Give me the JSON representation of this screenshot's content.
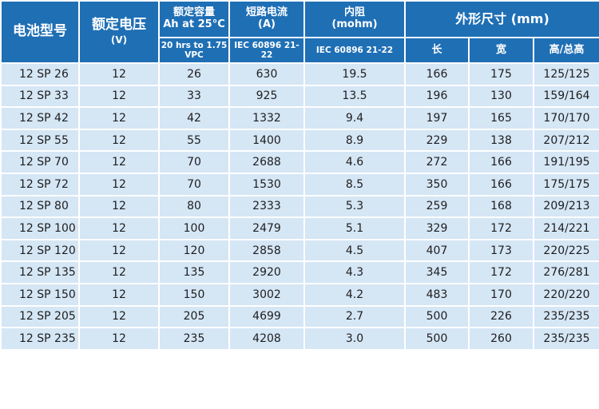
{
  "header": {
    "model": "电池型号",
    "voltage": "额定电压",
    "voltage_unit": "(V)",
    "capacity_line1": "额定容量",
    "capacity_line2": "Ah at 25°C",
    "capacity_sub": "20 hrs to 1.75 VPC",
    "short_line1": "短路电流",
    "short_line2": "(A)",
    "short_sub": "IEC 60896 21-22",
    "resist_line1": "内阻",
    "resist_line2": "(mohm)",
    "resist_sub": "IEC 60896 21-22",
    "dims": "外形尺寸 (mm)",
    "dim_length": "长",
    "dim_width": "宽",
    "dim_height": "高/总高"
  },
  "rows": [
    [
      "12 SP 26",
      "12",
      "26",
      "630",
      "19.5",
      "166",
      "175",
      "125/125"
    ],
    [
      "12 SP 33",
      "12",
      "33",
      "925",
      "13.5",
      "196",
      "130",
      "159/164"
    ],
    [
      "12 SP 42",
      "12",
      "42",
      "1332",
      "9.4",
      "197",
      "165",
      "170/170"
    ],
    [
      "12 SP 55",
      "12",
      "55",
      "1400",
      "8.9",
      "229",
      "138",
      "207/212"
    ],
    [
      "12 SP 70",
      "12",
      "70",
      "2688",
      "4.6",
      "272",
      "166",
      "191/195"
    ],
    [
      "12 SP 72",
      "12",
      "70",
      "1530",
      "8.5",
      "350",
      "166",
      "175/175"
    ],
    [
      "12 SP 80",
      "12",
      "80",
      "2333",
      "5.3",
      "259",
      "168",
      "209/213"
    ],
    [
      "12 SP 100",
      "12",
      "100",
      "2479",
      "5.1",
      "329",
      "172",
      "214/221"
    ],
    [
      "12 SP 120",
      "12",
      "120",
      "2858",
      "4.5",
      "407",
      "173",
      "220/225"
    ],
    [
      "12 SP 135",
      "12",
      "135",
      "2920",
      "4.3",
      "345",
      "172",
      "276/281"
    ],
    [
      "12 SP 150",
      "12",
      "150",
      "3002",
      "4.2",
      "483",
      "170",
      "220/220"
    ],
    [
      "12 SP 205",
      "12",
      "205",
      "4699",
      "2.7",
      "500",
      "226",
      "235/235"
    ],
    [
      "12 SP 235",
      "12",
      "235",
      "4208",
      "3.0",
      "500",
      "260",
      "235/235"
    ]
  ],
  "colors": {
    "header_bg": "#1f6fb5",
    "row_bg": "#d5e6f5"
  }
}
